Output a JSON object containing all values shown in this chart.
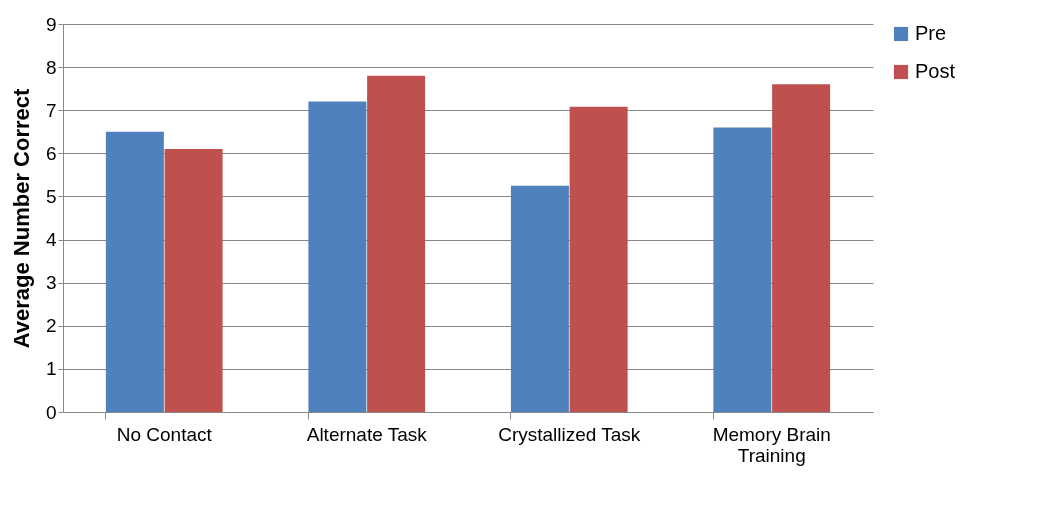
{
  "chart_data": {
    "type": "bar",
    "ylabel": "Average Number Correct",
    "categories": [
      "No Contact",
      "Alternate Task",
      "Crystallized Task",
      "Memory Brain Training"
    ],
    "series": [
      {
        "name": "Pre",
        "color": "#4f81bd",
        "values": [
          6.5,
          7.2,
          5.25,
          6.6
        ]
      },
      {
        "name": "Post",
        "color": "#c0504d",
        "values": [
          6.1,
          7.8,
          7.08,
          7.6
        ]
      }
    ],
    "ylim": [
      0,
      9
    ],
    "yticks": [
      0,
      1,
      2,
      3,
      4,
      5,
      6,
      7,
      8,
      9
    ],
    "grid": "y",
    "legend": "right"
  }
}
